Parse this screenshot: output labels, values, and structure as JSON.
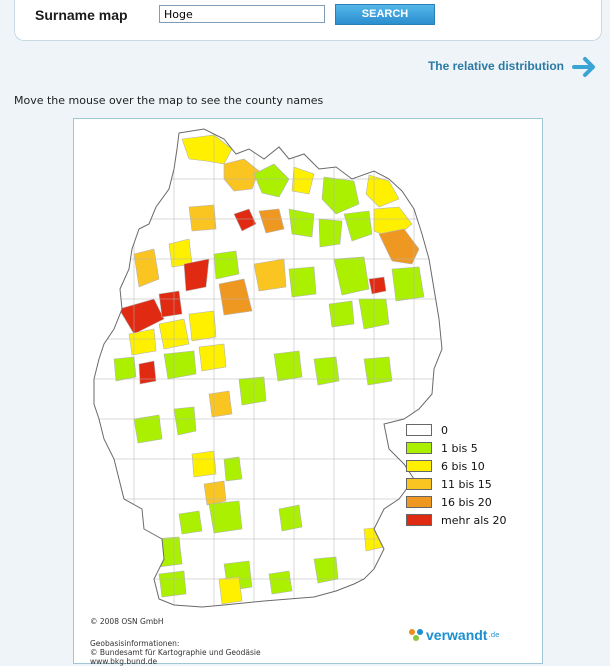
{
  "search": {
    "label": "Surname map",
    "input_value": "Hoge",
    "button_label": "SEARCH"
  },
  "relative_link": {
    "label": "The relative distribution",
    "icon": "arrow-right-icon"
  },
  "hint": "Move the mouse over the map to see the county names",
  "legend": [
    {
      "label": "0",
      "color": "#ffffff"
    },
    {
      "label": "1 bis 5",
      "color": "#aaf000"
    },
    {
      "label": "6 bis 10",
      "color": "#fff000"
    },
    {
      "label": "11 bis 15",
      "color": "#fbc521"
    },
    {
      "label": "16 bis 20",
      "color": "#ee9822"
    },
    {
      "label": "mehr als 20",
      "color": "#e02a12"
    }
  ],
  "copyright": "© 2008 OSN GmbH",
  "credits": [
    "Geobasisinformationen:",
    "© Bundesamt für Kartographie und Geodäsie",
    "www.bkg.bund.de"
  ],
  "logo": {
    "text": "verwandt",
    "tld": ".de",
    "icon": "verwandt-logo-icon"
  },
  "map_colors": {
    "border": "#6a6a6a",
    "county_line": "#b4b4b4",
    "empty": "#ffffff"
  }
}
